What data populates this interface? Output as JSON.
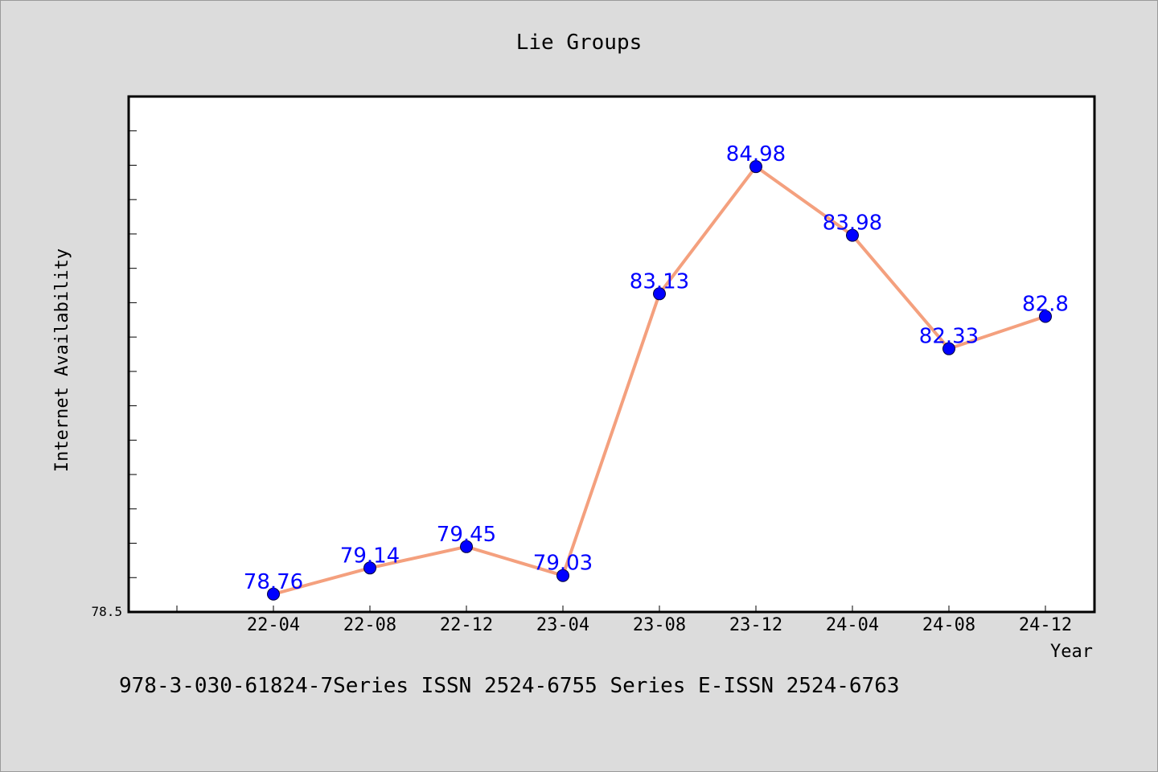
{
  "chart_data": {
    "type": "line",
    "title": "Lie Groups",
    "xlabel": "Year",
    "ylabel": "Internet Availability",
    "categories": [
      "22-04",
      "22-08",
      "22-12",
      "23-04",
      "23-08",
      "23-12",
      "24-04",
      "24-08",
      "24-12"
    ],
    "series": [
      {
        "values": [
          78.76,
          79.14,
          79.45,
          79.03,
          83.13,
          84.98,
          83.98,
          82.33,
          82.8
        ],
        "labels": [
          "78.76",
          "79.14",
          "79.45",
          "79.03",
          "83.13",
          "84.98",
          "83.98",
          "82.33",
          "82.8"
        ]
      }
    ],
    "ylim": [
      78.5,
      86.0
    ],
    "y_tick_labels": [
      "78.5"
    ],
    "grid": false,
    "line_color": "#f4a07e",
    "marker_color": "#0000ff",
    "label_color": "#0000ff"
  },
  "footer_text": "978-3-030-61824-7Series ISSN 2524-6755 Series E-ISSN 2524-6763"
}
